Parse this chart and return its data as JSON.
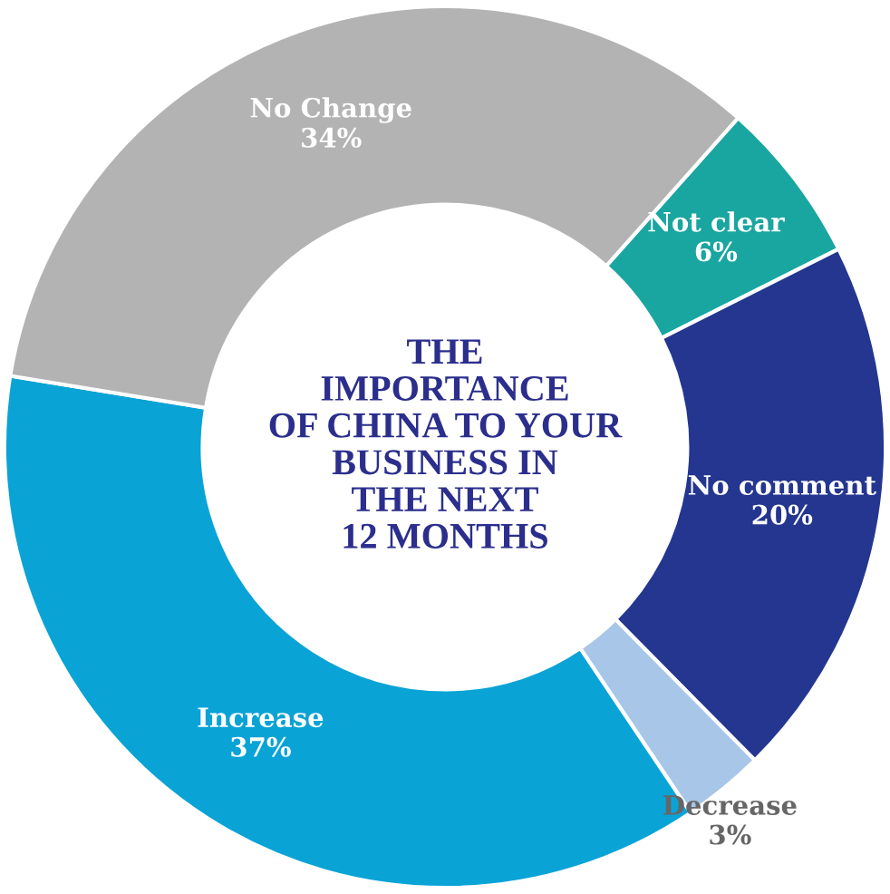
{
  "chart_data": {
    "type": "donut",
    "title": "THE\nIMPORTANCE\nOF CHINA TO YOUR\nBUSINESS IN\nTHE NEXT\n12 MONTHS",
    "categories": [
      "Not clear",
      "No comment",
      "Decrease",
      "Increase",
      "No Change"
    ],
    "values": [
      6,
      20,
      3,
      37,
      34
    ],
    "value_labels": [
      "6%",
      "20%",
      "3%",
      "37%",
      "34%"
    ],
    "colors": [
      "#1aa6a0",
      "#24368f",
      "#a8c6e8",
      "#0aa3d6",
      "#b3b3b3"
    ],
    "legend": false
  }
}
